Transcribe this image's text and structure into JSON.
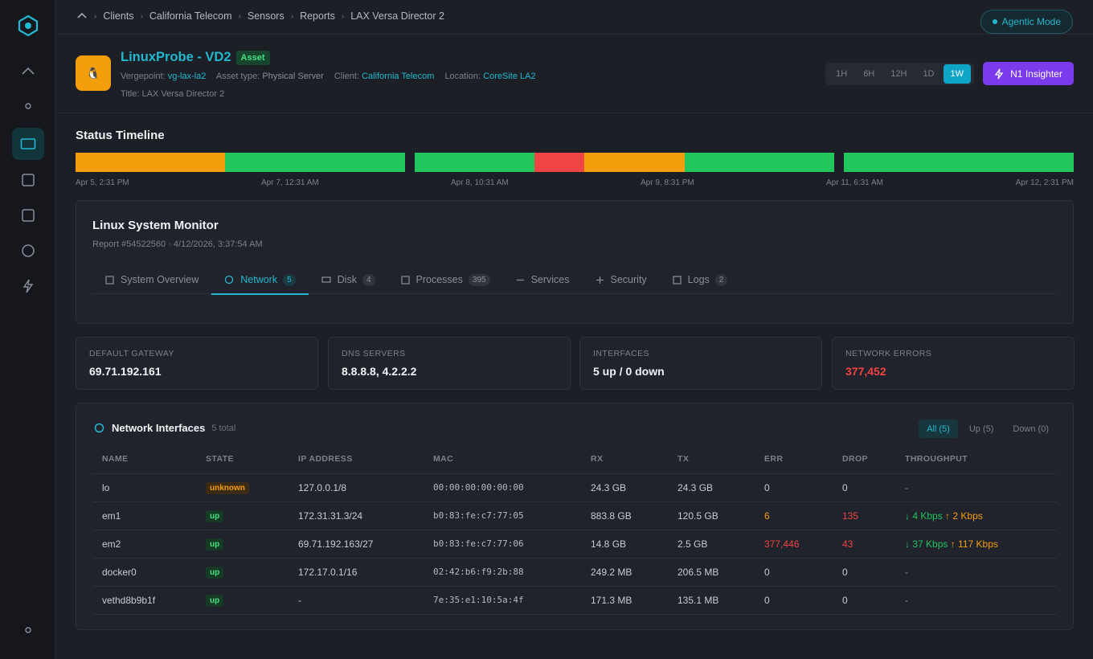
{
  "breadcrumb": [
    "Clients",
    "California Telecom",
    "Sensors",
    "Reports",
    "LAX Versa Director 2"
  ],
  "agentic_mode": "Agentic Mode",
  "asset": {
    "icon_glyph": "🐧",
    "name": "LinuxProbe - VD2",
    "badge": "Asset",
    "vergepoint_label": "Vergepoint:",
    "vergepoint": "vg-lax-la2",
    "asset_type_label": "Asset type:",
    "asset_type": "Physical Server",
    "client_label": "Client:",
    "client": "California Telecom",
    "location_label": "Location:",
    "location": "CoreSite LA2",
    "title_line": "Title: LAX Versa Director 2"
  },
  "time_ranges": [
    "1H",
    "6H",
    "12H",
    "1D",
    "1W"
  ],
  "time_range_selected": "1W",
  "insighter": "N1 Insighter",
  "timeline": {
    "title": "Status Timeline",
    "labels": [
      "Apr 5, 2:31 PM",
      "Apr 7, 12:31 AM",
      "Apr 8, 10:31 AM",
      "Apr 9, 8:31 PM",
      "Apr 11, 6:31 AM",
      "Apr 12, 2:31 PM"
    ],
    "colors": {
      "warning": "#f59e0b",
      "ok": "#22c55e",
      "critical": "#ef4444"
    }
  },
  "monitor": {
    "title": "Linux System Monitor",
    "subtitle": "Report #54522560 · 4/12/2026, 3:37:54 AM",
    "tabs": [
      {
        "label": "System Overview",
        "count": ""
      },
      {
        "label": "Network",
        "count": "5"
      },
      {
        "label": "Disk",
        "count": "4"
      },
      {
        "label": "Processes",
        "count": "395"
      },
      {
        "label": "Services",
        "count": ""
      },
      {
        "label": "Security",
        "count": ""
      },
      {
        "label": "Logs",
        "count": "2"
      }
    ],
    "active_tab": "Network"
  },
  "stats": [
    {
      "label": "DEFAULT GATEWAY",
      "value": "69.71.192.161"
    },
    {
      "label": "DNS SERVERS",
      "value": "8.8.8.8, 4.2.2.2"
    },
    {
      "label": "INTERFACES",
      "value": "5 up / 0 down"
    },
    {
      "label": "NETWORK ERRORS",
      "value": "377,452"
    }
  ],
  "interfaces": {
    "title": "Network Interfaces",
    "total": "5 total",
    "filters": [
      "All (5)",
      "Up (5)",
      "Down (0)"
    ],
    "columns": [
      "NAME",
      "STATE",
      "IP ADDRESS",
      "MAC",
      "RX",
      "TX",
      "ERR",
      "DROP",
      "THROUGHPUT"
    ],
    "rows": [
      {
        "name": "lo",
        "state": "unknown",
        "ip": "127.0.0.1/8",
        "mac": "00:00:00:00:00:00",
        "rx": "24.3 GB",
        "tx": "24.3 GB",
        "err": "0",
        "drop": "0",
        "tp_down": "",
        "tp_up": "",
        "tp_none": "-"
      },
      {
        "name": "em1",
        "state": "up",
        "ip": "172.31.31.3/24",
        "mac": "b0:83:fe:c7:77:05",
        "rx": "883.8 GB",
        "tx": "120.5 GB",
        "err": "6",
        "drop": "135",
        "tp_down": "↓ 4 Kbps",
        "tp_up": "↑ 2 Kbps",
        "tp_none": ""
      },
      {
        "name": "em2",
        "state": "up",
        "ip": "69.71.192.163/27",
        "mac": "b0:83:fe:c7:77:06",
        "rx": "14.8 GB",
        "tx": "2.5 GB",
        "err": "377,446",
        "drop": "43",
        "tp_down": "↓ 37 Kbps",
        "tp_up": "↑ 117 Kbps",
        "tp_none": ""
      },
      {
        "name": "docker0",
        "state": "up",
        "ip": "172.17.0.1/16",
        "mac": "02:42:b6:f9:2b:88",
        "rx": "249.2 MB",
        "tx": "206.5 MB",
        "err": "0",
        "drop": "0",
        "tp_down": "",
        "tp_up": "",
        "tp_none": "-"
      },
      {
        "name": "vethd8b9b1f",
        "state": "up",
        "ip": "-",
        "mac": "7e:35:e1:10:5a:4f",
        "rx": "171.3 MB",
        "tx": "135.1 MB",
        "err": "0",
        "drop": "0",
        "tp_down": "",
        "tp_up": "",
        "tp_none": "-"
      }
    ]
  }
}
